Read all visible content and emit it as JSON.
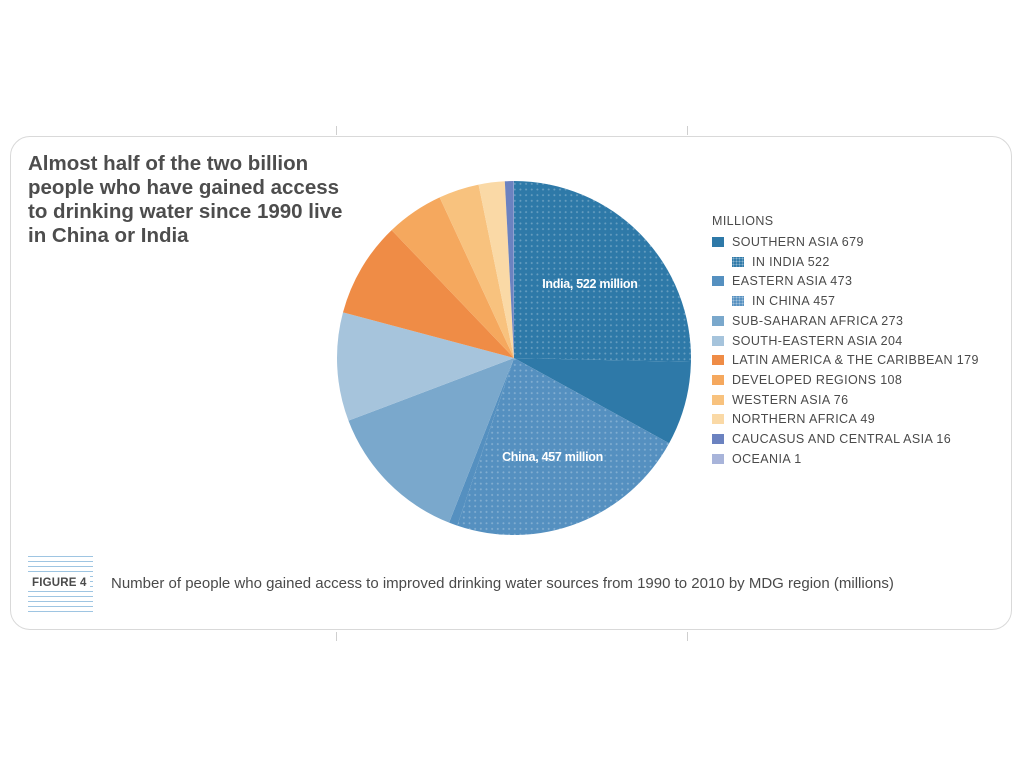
{
  "headline": "Almost half of the two billion people who have gained access to drinking water since 1990 live in China or India",
  "figure_label": "FIGURE 4",
  "caption": "Number of people who gained access to improved drinking water sources from 1990 to 2010 by MDG region (millions)",
  "colors": {
    "southern_asia": "#2e79a8",
    "eastern_asia": "#5590c0",
    "sub_saharan_africa": "#7aa8cc",
    "south_eastern_asia": "#a6c4dc",
    "latin_america": "#ef8c46",
    "developed_regions": "#f5a85e",
    "western_asia": "#f8c27e",
    "northern_africa": "#fad9a6",
    "caucasus": "#6b82c0",
    "oceania": "#a8b4da"
  },
  "chart_data": {
    "type": "pie",
    "title": "",
    "unit_label": "MILLIONS",
    "total": 2058,
    "slices": [
      {
        "name": "SOUTHERN ASIA",
        "value": 679,
        "color_key": "southern_asia",
        "sub": {
          "name": "IN INDIA",
          "value": 522,
          "label": "India, 522 million"
        }
      },
      {
        "name": "EASTERN ASIA",
        "value": 473,
        "color_key": "eastern_asia",
        "sub": {
          "name": "IN CHINA",
          "value": 457,
          "label": "China, 457 million"
        }
      },
      {
        "name": "SUB-SAHARAN AFRICA",
        "value": 273,
        "color_key": "sub_saharan_africa"
      },
      {
        "name": "SOUTH-EASTERN ASIA",
        "value": 204,
        "color_key": "south_eastern_asia"
      },
      {
        "name": "LATIN AMERICA & THE CARIBBEAN",
        "value": 179,
        "color_key": "latin_america"
      },
      {
        "name": "DEVELOPED REGIONS",
        "value": 108,
        "color_key": "developed_regions"
      },
      {
        "name": "WESTERN ASIA",
        "value": 76,
        "color_key": "western_asia"
      },
      {
        "name": "NORTHERN AFRICA",
        "value": 49,
        "color_key": "northern_africa"
      },
      {
        "name": "CAUCASUS AND CENTRAL ASIA",
        "value": 16,
        "color_key": "caucasus"
      },
      {
        "name": "OCEANIA",
        "value": 1,
        "color_key": "oceania"
      }
    ],
    "legend": [
      {
        "text": "SOUTHERN ASIA 679",
        "color_key": "southern_asia",
        "pattern": false,
        "indent": false
      },
      {
        "text": "IN INDIA 522",
        "color_key": "southern_asia",
        "pattern": true,
        "indent": true
      },
      {
        "text": "EASTERN ASIA 473",
        "color_key": "eastern_asia",
        "pattern": false,
        "indent": false
      },
      {
        "text": "IN CHINA 457",
        "color_key": "eastern_asia",
        "pattern": true,
        "indent": true
      },
      {
        "text": "SUB-SAHARAN AFRICA 273",
        "color_key": "sub_saharan_africa",
        "pattern": false,
        "indent": false
      },
      {
        "text": "SOUTH-EASTERN ASIA 204",
        "color_key": "south_eastern_asia",
        "pattern": false,
        "indent": false
      },
      {
        "text": "LATIN AMERICA & THE CARIBBEAN 179",
        "color_key": "latin_america",
        "pattern": false,
        "indent": false
      },
      {
        "text": "DEVELOPED REGIONS 108",
        "color_key": "developed_regions",
        "pattern": false,
        "indent": false
      },
      {
        "text": "WESTERN ASIA 76",
        "color_key": "western_asia",
        "pattern": false,
        "indent": false
      },
      {
        "text": "NORTHERN AFRICA 49",
        "color_key": "northern_africa",
        "pattern": false,
        "indent": false
      },
      {
        "text": "CAUCASUS AND CENTRAL ASIA 16",
        "color_key": "caucasus",
        "pattern": false,
        "indent": false
      },
      {
        "text": "OCEANIA 1",
        "color_key": "oceania",
        "pattern": false,
        "indent": false
      }
    ]
  }
}
